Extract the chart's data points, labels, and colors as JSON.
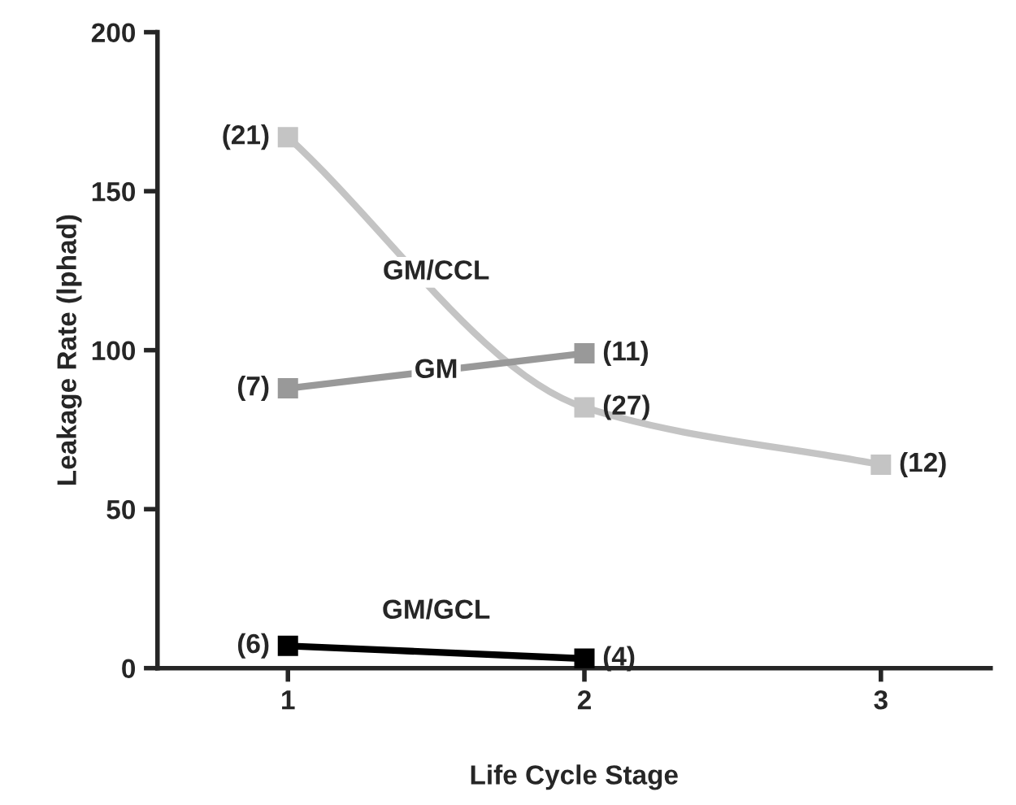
{
  "chart_data": {
    "type": "line",
    "xlabel": "Life Cycle Stage",
    "ylabel": "Leakage Rate (lphad)",
    "xlim": [
      0.56,
      3.37
    ],
    "xticks": [
      1,
      2,
      3
    ],
    "ylim": [
      0,
      200
    ],
    "yticks": [
      0,
      50,
      100,
      150,
      200
    ],
    "grid": false,
    "legend": false,
    "marker": "square",
    "series": [
      {
        "name": "GM/CCL",
        "color": "#c4c4c4",
        "x": [
          1,
          2,
          3
        ],
        "values": [
          167,
          82,
          64
        ]
      },
      {
        "name": "GM",
        "color": "#999999",
        "x": [
          1,
          2
        ],
        "values": [
          88,
          99
        ]
      },
      {
        "name": "GM/GCL",
        "color": "#000000",
        "x": [
          1,
          2
        ],
        "values": [
          7,
          3
        ]
      }
    ],
    "annotations": [
      {
        "text": "(21)",
        "x": 1,
        "y": 167
      },
      {
        "text": "(27)",
        "x": 2,
        "y": 82
      },
      {
        "text": "(12)",
        "x": 3,
        "y": 64
      },
      {
        "text": "(7)",
        "x": 1,
        "y": 88
      },
      {
        "text": "(11)",
        "x": 2,
        "y": 99
      },
      {
        "text": "(6)",
        "x": 1,
        "y": 7
      },
      {
        "text": "(4)",
        "x": 2,
        "y": 3
      }
    ]
  }
}
